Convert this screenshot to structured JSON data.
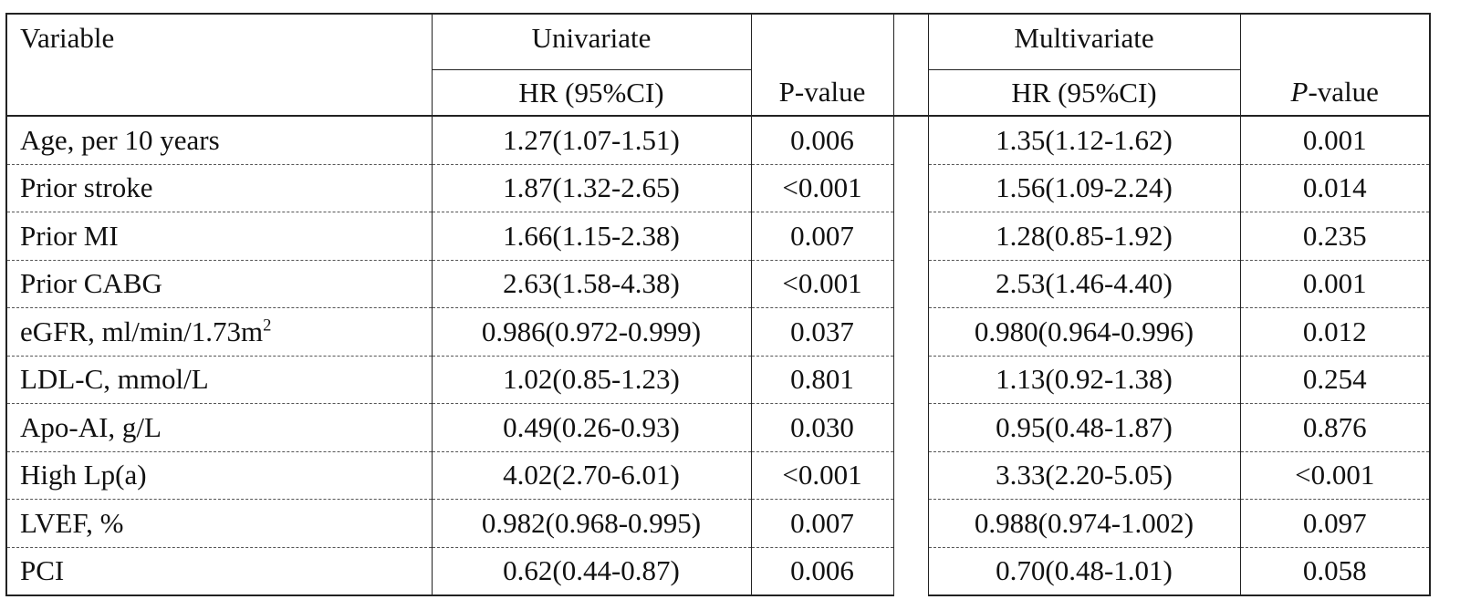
{
  "headers": {
    "variable": "Variable",
    "univariate": "Univariate",
    "multivariate": "Multivariate",
    "hr_ci": "HR (95%CI)",
    "p_value": "P-value",
    "p_value_italic_p": "P",
    "p_value_suffix": "-value"
  },
  "rows": [
    {
      "variable": "Age, per 10 years",
      "u_hr": "1.27(1.07-1.51)",
      "u_p": "0.006",
      "m_hr": "1.35(1.12-1.62)",
      "m_p": "0.001"
    },
    {
      "variable": "Prior stroke",
      "u_hr": "1.87(1.32-2.65)",
      "u_p": "<0.001",
      "m_hr": "1.56(1.09-2.24)",
      "m_p": "0.014"
    },
    {
      "variable": "Prior MI",
      "u_hr": "1.66(1.15-2.38)",
      "u_p": "0.007",
      "m_hr": "1.28(0.85-1.92)",
      "m_p": "0.235"
    },
    {
      "variable": "Prior CABG",
      "u_hr": "2.63(1.58-4.38)",
      "u_p": "<0.001",
      "m_hr": "2.53(1.46-4.40)",
      "m_p": "0.001"
    },
    {
      "variable": "eGFR, ml/min/1.73m",
      "variable_sup": "2",
      "u_hr": "0.986(0.972-0.999)",
      "u_p": "0.037",
      "m_hr": "0.980(0.964-0.996)",
      "m_p": "0.012"
    },
    {
      "variable": "LDL-C, mmol/L",
      "u_hr": "1.02(0.85-1.23)",
      "u_p": "0.801",
      "m_hr": "1.13(0.92-1.38)",
      "m_p": "0.254"
    },
    {
      "variable": "Apo-AI, g/L",
      "u_hr": "0.49(0.26-0.93)",
      "u_p": "0.030",
      "m_hr": "0.95(0.48-1.87)",
      "m_p": "0.876"
    },
    {
      "variable": "High Lp(a)",
      "u_hr": "4.02(2.70-6.01)",
      "u_p": "<0.001",
      "m_hr": "3.33(2.20-5.05)",
      "m_p": "<0.001"
    },
    {
      "variable": "LVEF, %",
      "u_hr": "0.982(0.968-0.995)",
      "u_p": "0.007",
      "m_hr": "0.988(0.974-1.002)",
      "m_p": "0.097"
    },
    {
      "variable": "PCI",
      "u_hr": "0.62(0.44-0.87)",
      "u_p": "0.006",
      "m_hr": "0.70(0.48-1.01)",
      "m_p": "0.058"
    }
  ]
}
